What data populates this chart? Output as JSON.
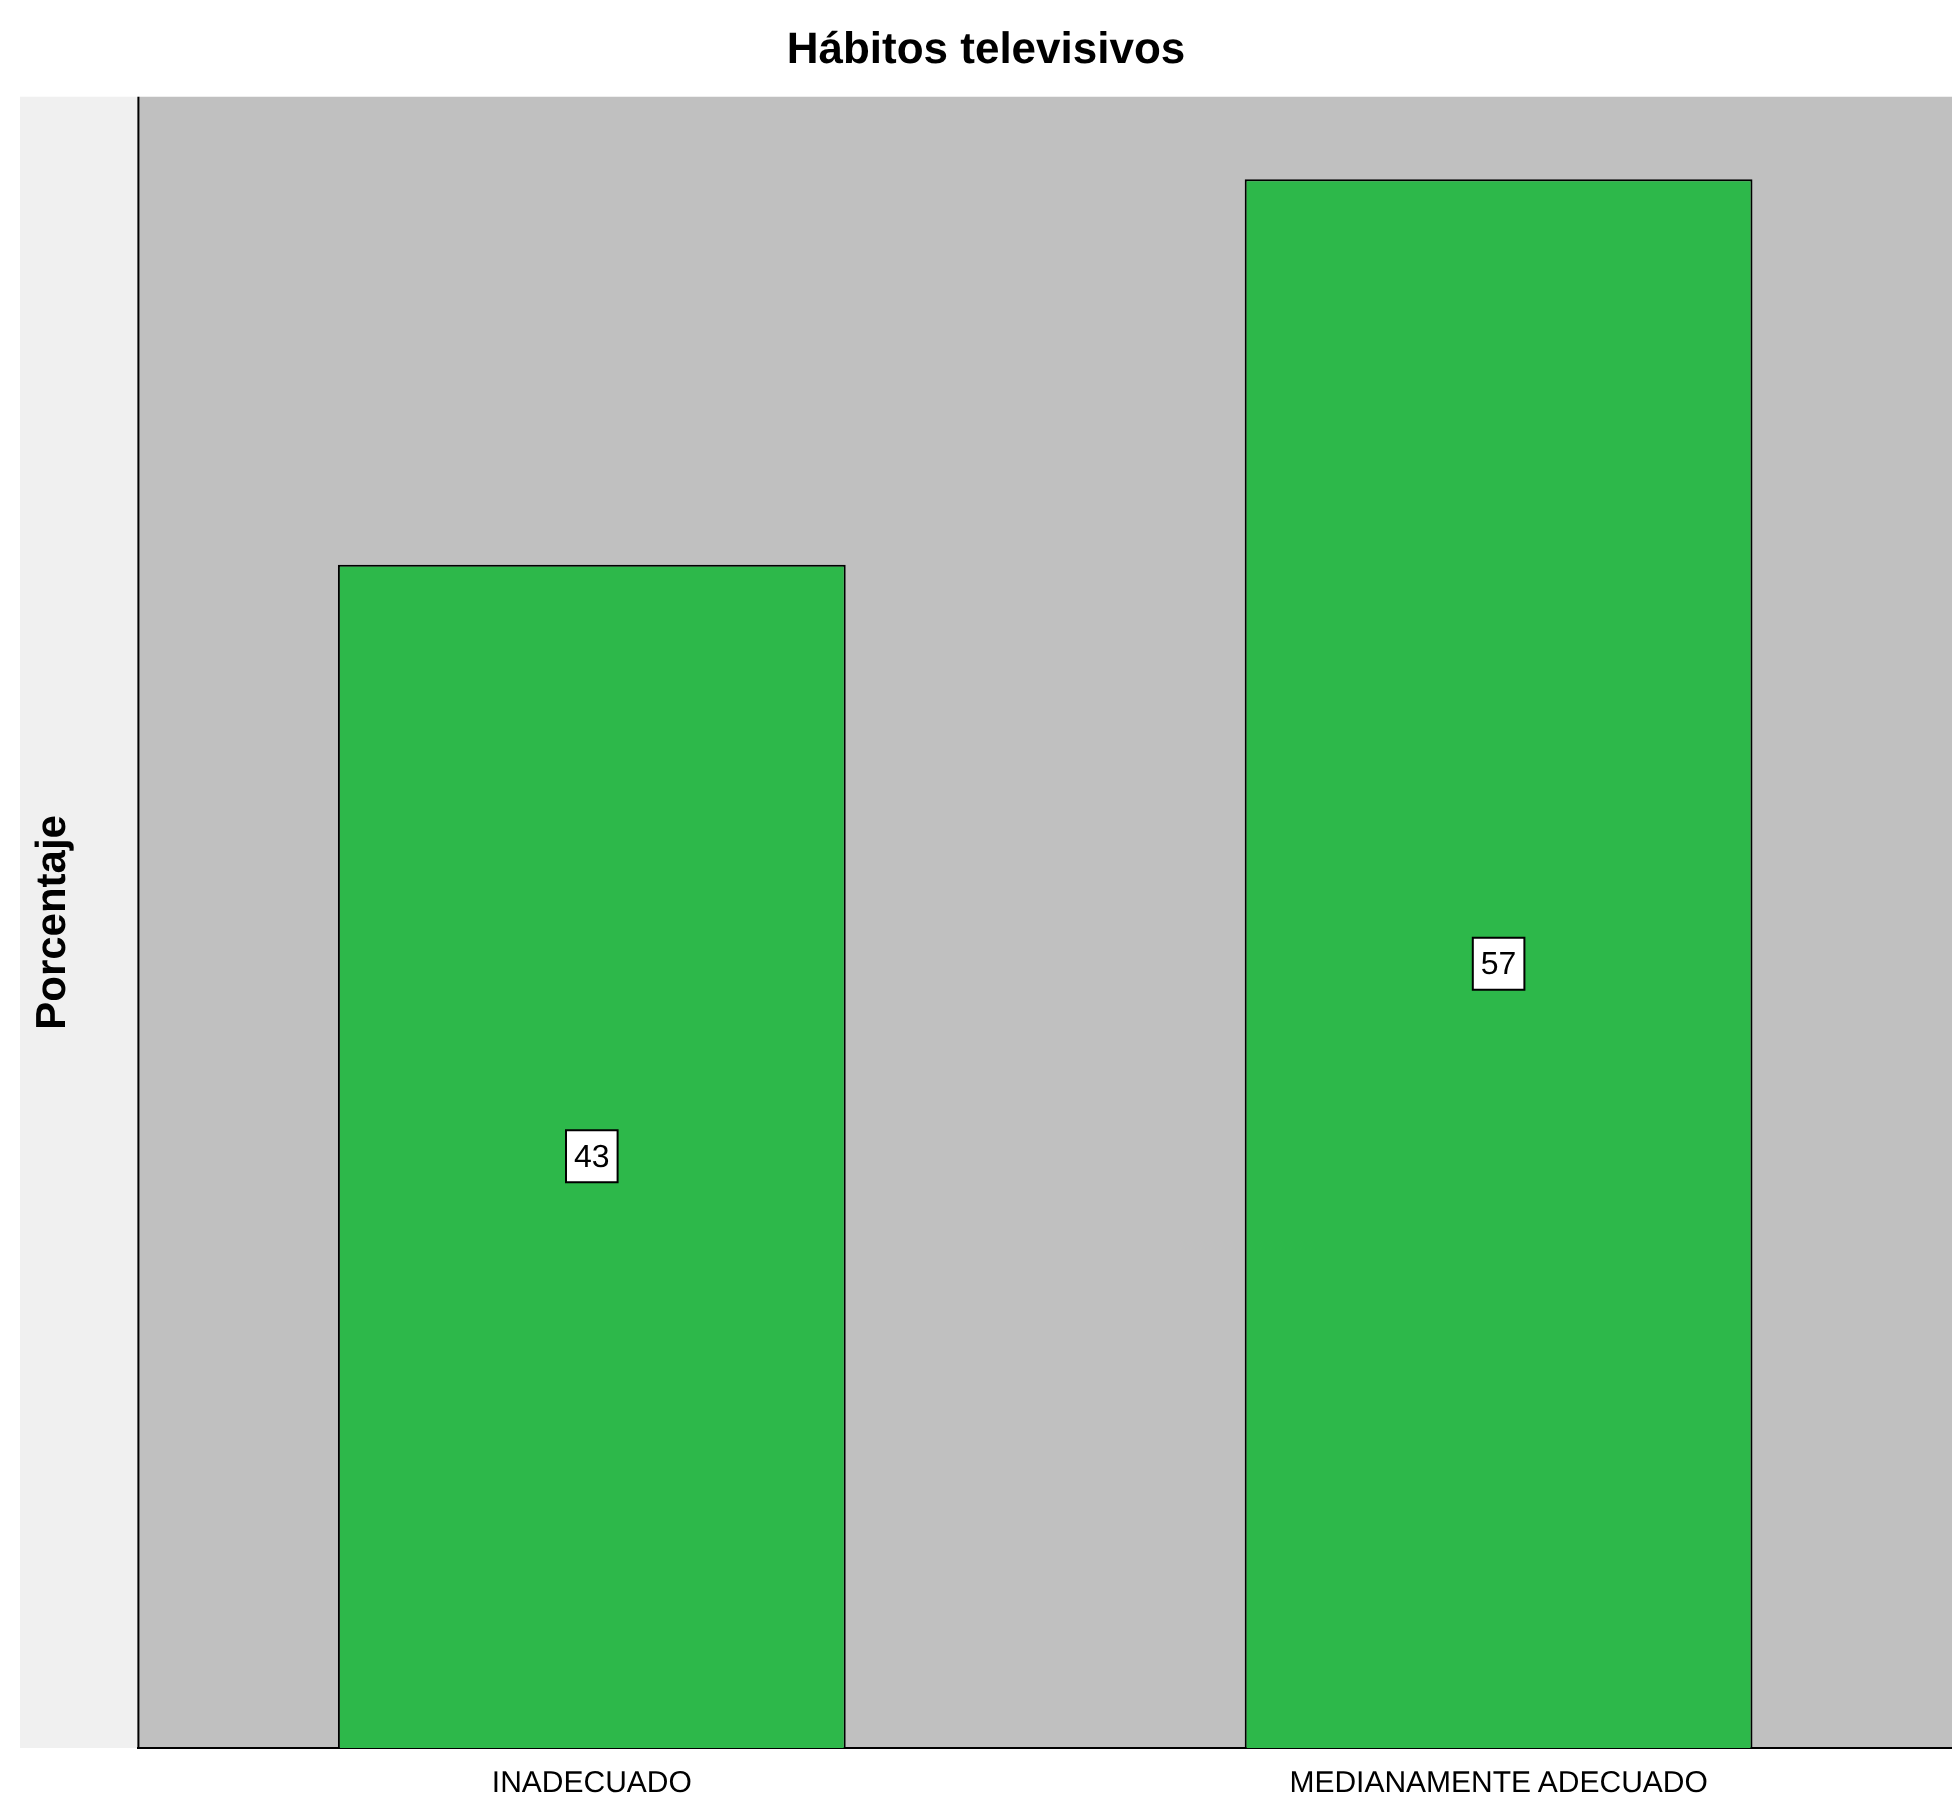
{
  "chart_data": {
    "type": "bar",
    "title": "Hábitos televisivos",
    "ylabel": "Porcentaje",
    "categories": [
      "INADECUADO",
      "MEDIANAMENTE ADECUADO"
    ],
    "values": [
      43,
      57
    ],
    "color": "#2db84a",
    "data_labels": true,
    "grid": false,
    "legend": false
  }
}
